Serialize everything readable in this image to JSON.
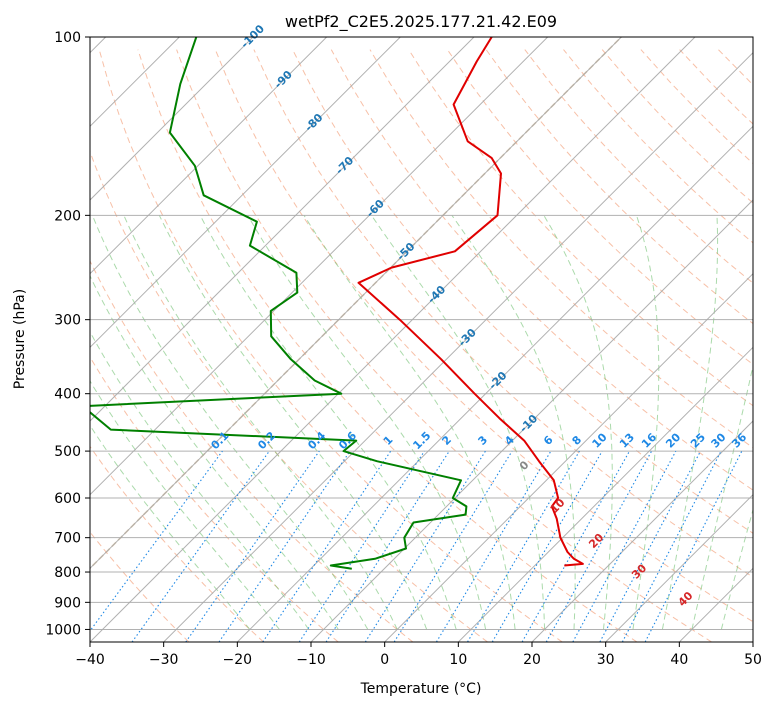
{
  "chart_data": {
    "type": "line",
    "diagram": "skew-t",
    "title": "wetPf2_C2E5.2025.177.21.42.E09",
    "xlabel": "Temperature (°C)",
    "ylabel": "Pressure (hPa)",
    "xlim": [
      -40,
      50
    ],
    "ylim": [
      1050,
      100
    ],
    "y_scale": "log",
    "x_ticks": [
      -40,
      -30,
      -20,
      -10,
      0,
      10,
      20,
      30,
      40,
      50
    ],
    "x_tick_labels": [
      "−40",
      "−30",
      "−20",
      "−10",
      "0",
      "10",
      "20",
      "30",
      "40",
      "50"
    ],
    "y_ticks": [
      100,
      200,
      300,
      400,
      500,
      600,
      700,
      800,
      900,
      1000
    ],
    "y_tick_labels": [
      "100",
      "200",
      "300",
      "400",
      "500",
      "600",
      "700",
      "800",
      "900",
      "1000"
    ],
    "grid": true,
    "colors": {
      "temperature": "#e00000",
      "dewpoint": "#008000",
      "isotherm": "#a9a9a9",
      "dry_adiabat": "#f4a582",
      "moist_adiabat": "#66bb66",
      "mixing_ratio": "#1e88e5",
      "isotherm_label": "#1f77b4",
      "moist_label": "#d62728",
      "zero_label": "#888888",
      "surface_curve": "#d2b48c"
    },
    "series": [
      {
        "key": "temperature",
        "pressure": [
          780,
          775,
          760,
          740,
          700,
          650,
          620,
          600,
          560,
          520,
          480,
          440,
          400,
          350,
          300,
          260,
          245,
          230,
          200,
          170,
          160,
          150,
          130,
          120,
          110,
          100
        ],
        "temperature": [
          14.0,
          16.3,
          14.4,
          12.6,
          9.7,
          6.6,
          4.3,
          4.0,
          1.0,
          -3.6,
          -8.4,
          -14.8,
          -21.5,
          -30.7,
          -41.7,
          -52.3,
          -49.9,
          -43.5,
          -42.6,
          -47.8,
          -51.2,
          -56.7,
          -63.6,
          -64.9,
          -66.3,
          -67.6
        ]
      },
      {
        "key": "dewpoint",
        "pressure": [
          790,
          780,
          760,
          730,
          700,
          660,
          640,
          620,
          600,
          560,
          520,
          500,
          480,
          460,
          420,
          400,
          380,
          350,
          320,
          290,
          270,
          250,
          225,
          205,
          185,
          165,
          145,
          120,
          100
        ],
        "temperature": [
          -14.4,
          -17.7,
          -12.6,
          -9.8,
          -11.5,
          -12.3,
          -6.3,
          -7.3,
          -10.3,
          -11.6,
          -25.6,
          -31.5,
          -31.2,
          -66,
          -73,
          -39.6,
          -45.0,
          -51.1,
          -56.9,
          -60.4,
          -59.3,
          -62.1,
          -72.1,
          -74.4,
          -85.2,
          -90.4,
          -98.3,
          -103.5,
          -107.7
        ]
      }
    ],
    "isotherm_labels": [
      "-100",
      "-90",
      "-80",
      "-70",
      "-60",
      "-50",
      "-40",
      "-30",
      "-20",
      "-10"
    ],
    "isotherm_label_values": [
      -100,
      -90,
      -80,
      -70,
      -60,
      -50,
      -40,
      -30,
      -20,
      -10
    ],
    "mixing_ratio_labels": [
      "0.1",
      "0.2",
      "0.4",
      "0.6",
      "1",
      "1.5",
      "2",
      "3",
      "4",
      "6",
      "8",
      "10",
      "13",
      "16",
      "20",
      "25",
      "30",
      "36"
    ],
    "mixing_ratio_values": [
      0.1,
      0.2,
      0.4,
      0.6,
      1,
      1.5,
      2,
      3,
      4,
      6,
      8,
      10,
      13,
      16,
      20,
      25,
      30,
      36
    ],
    "moist_adiabat_labels": [
      "0",
      "10",
      "20",
      "30",
      "40"
    ],
    "moist_adiabat_values": [
      0,
      10,
      20,
      30,
      40
    ]
  }
}
